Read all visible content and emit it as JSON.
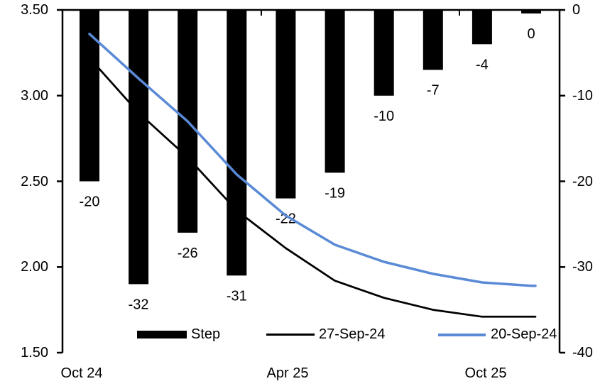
{
  "chart_data": {
    "type": "combo_bar_line",
    "title": "",
    "bar_series": {
      "name": "Step",
      "axis": "right",
      "color": "#000000",
      "values": [
        -20,
        -32,
        -26,
        -31,
        -22,
        -19,
        -10,
        -7,
        -4,
        0
      ],
      "labels": [
        "-20",
        "-32",
        "-26",
        "-31",
        "-22",
        "-19",
        "-10",
        "-7",
        "-4",
        "0"
      ]
    },
    "line_series": [
      {
        "name": "27-Sep-24",
        "axis": "left",
        "color": "#000000",
        "values": [
          3.22,
          2.9,
          2.64,
          2.33,
          2.11,
          1.92,
          1.82,
          1.75,
          1.71,
          1.71
        ]
      },
      {
        "name": "20-Sep-24",
        "axis": "left",
        "color": "#5A8AD6",
        "values": [
          3.36,
          3.1,
          2.85,
          2.54,
          2.3,
          2.13,
          2.03,
          1.96,
          1.91,
          1.89
        ]
      }
    ],
    "left_axis": {
      "min": 1.5,
      "max": 3.5,
      "tick_labels": [
        "3.50",
        "3.00",
        "2.50",
        "2.00",
        "1.50"
      ],
      "tick_values": [
        3.5,
        3.0,
        2.5,
        2.0,
        1.5
      ]
    },
    "right_axis": {
      "min": -40,
      "max": 0,
      "tick_labels": [
        "0",
        "-10",
        "-20",
        "-30",
        "-40"
      ],
      "tick_values": [
        0,
        -10,
        -20,
        -30,
        -40
      ]
    },
    "x_axis": {
      "tick_labels": [
        "Oct 24",
        "Apr 25",
        "Oct 25"
      ]
    },
    "legend": [
      {
        "label": "Step",
        "type": "bar",
        "color": "#000000"
      },
      {
        "label": "27-Sep-24",
        "type": "line",
        "color": "#000000"
      },
      {
        "label": "20-Sep-24",
        "type": "line",
        "color": "#5A8AD6"
      }
    ],
    "grid": false,
    "legend_position": "bottom-inside"
  }
}
